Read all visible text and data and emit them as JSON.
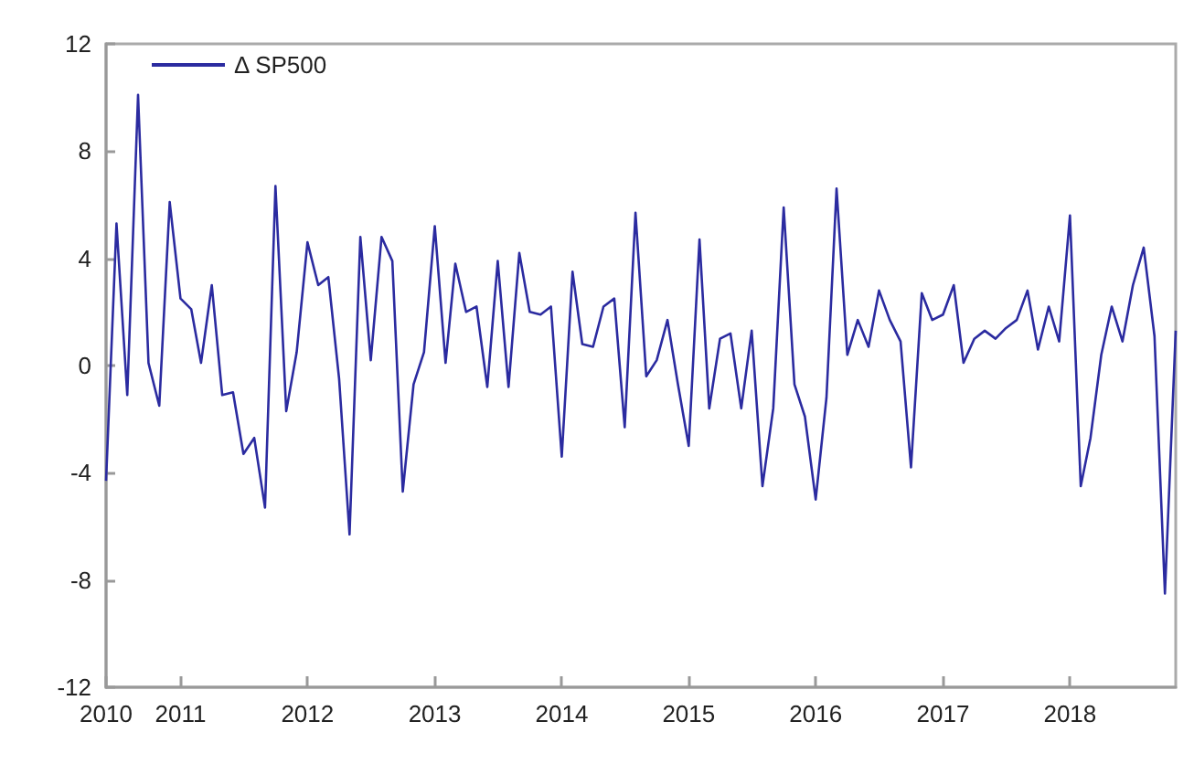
{
  "chart_data": {
    "type": "line",
    "x": [
      "2010-06",
      "2010-07",
      "2010-08",
      "2010-09",
      "2010-10",
      "2010-11",
      "2010-12",
      "2011-01",
      "2011-02",
      "2011-03",
      "2011-04",
      "2011-05",
      "2011-06",
      "2011-07",
      "2011-08",
      "2011-09",
      "2011-10",
      "2011-11",
      "2011-12",
      "2012-01",
      "2012-02",
      "2012-03",
      "2012-04",
      "2012-05",
      "2012-06",
      "2012-07",
      "2012-08",
      "2012-09",
      "2012-10",
      "2012-11",
      "2012-12",
      "2013-01",
      "2013-02",
      "2013-03",
      "2013-04",
      "2013-05",
      "2013-06",
      "2013-07",
      "2013-08",
      "2013-09",
      "2013-10",
      "2013-11",
      "2013-12",
      "2014-01",
      "2014-02",
      "2014-03",
      "2014-04",
      "2014-05",
      "2014-06",
      "2014-07",
      "2014-08",
      "2014-09",
      "2014-10",
      "2014-11",
      "2014-12",
      "2015-01",
      "2015-02",
      "2015-03",
      "2015-04",
      "2015-05",
      "2015-06",
      "2015-07",
      "2015-08",
      "2015-09",
      "2015-10",
      "2015-11",
      "2015-12",
      "2016-01",
      "2016-02",
      "2016-03",
      "2016-04",
      "2016-05",
      "2016-06",
      "2016-07",
      "2016-08",
      "2016-09",
      "2016-10",
      "2016-11",
      "2016-12",
      "2017-01",
      "2017-02",
      "2017-03",
      "2017-04",
      "2017-05",
      "2017-06",
      "2017-07",
      "2017-08",
      "2017-09",
      "2017-10",
      "2017-11",
      "2017-12",
      "2018-01",
      "2018-02",
      "2018-03",
      "2018-04",
      "2018-05",
      "2018-06",
      "2018-07",
      "2018-08",
      "2018-09",
      "2018-10",
      "2018-11"
    ],
    "series": [
      {
        "name": "Δ SP500",
        "color": "#2b2ba0",
        "values": [
          -4.3,
          5.3,
          -1.1,
          10.1,
          0.1,
          -1.5,
          6.1,
          2.5,
          2.1,
          0.1,
          3.0,
          -1.1,
          -1.0,
          -3.3,
          -2.7,
          -5.3,
          6.7,
          -1.7,
          0.5,
          4.6,
          3.0,
          3.3,
          -0.5,
          -6.3,
          4.8,
          0.2,
          4.8,
          3.9,
          -4.7,
          -0.7,
          0.5,
          5.2,
          0.1,
          3.8,
          2.0,
          2.2,
          -0.8,
          3.9,
          -0.8,
          4.2,
          2.0,
          1.9,
          2.2,
          -3.4,
          3.5,
          0.8,
          0.7,
          2.2,
          2.5,
          -2.3,
          5.7,
          -0.4,
          0.2,
          1.7,
          -0.7,
          -3.0,
          4.7,
          -1.6,
          1.0,
          1.2,
          -1.6,
          1.3,
          -4.5,
          -1.6,
          5.9,
          -0.7,
          -1.9,
          -5.0,
          -1.2,
          6.6,
          0.4,
          1.7,
          0.7,
          2.8,
          1.7,
          0.9,
          -3.8,
          2.7,
          1.7,
          1.9,
          3.0,
          0.1,
          1.0,
          1.3,
          1.0,
          1.4,
          1.7,
          2.8,
          0.6,
          2.2,
          0.9,
          5.6,
          -4.5,
          -2.7,
          0.4,
          2.2,
          0.9,
          3.0,
          4.4,
          1.1,
          -8.5,
          1.3
        ]
      }
    ],
    "xlim": [
      "2010-06",
      "2018-11"
    ],
    "xticks": [
      {
        "value": "2010-06",
        "label": "2010"
      },
      {
        "value": "2011-01",
        "label": "2011"
      },
      {
        "value": "2012-01",
        "label": "2012"
      },
      {
        "value": "2013-01",
        "label": "2013"
      },
      {
        "value": "2014-01",
        "label": "2014"
      },
      {
        "value": "2015-01",
        "label": "2015"
      },
      {
        "value": "2016-01",
        "label": "2016"
      },
      {
        "value": "2017-01",
        "label": "2017"
      },
      {
        "value": "2018-01",
        "label": "2018"
      }
    ],
    "ylim": [
      -12,
      12
    ],
    "yticks": [
      -12,
      -8,
      -4,
      0,
      4,
      8,
      12
    ],
    "grid": false,
    "legend": "top left",
    "marker": "none",
    "line_style": "solid"
  }
}
